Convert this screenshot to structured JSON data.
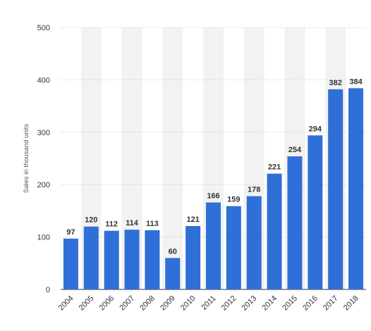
{
  "chart_data": {
    "type": "bar",
    "categories": [
      "2004",
      "2005",
      "2006",
      "2007",
      "2008",
      "2009",
      "2010",
      "2011",
      "2012",
      "2013",
      "2014",
      "2015",
      "2016",
      "2017",
      "2018"
    ],
    "values": [
      97,
      120,
      112,
      114,
      113,
      60,
      121,
      166,
      159,
      178,
      221,
      254,
      294,
      382,
      384
    ],
    "ylabel": "Sales in thousand units",
    "ylim": [
      0,
      500
    ],
    "yticks": [
      0,
      100,
      200,
      300,
      400,
      500
    ],
    "grid": true,
    "colors": {
      "bar": "#2f6fd8",
      "grid": "#c9c9c9",
      "band": "#f2f2f2"
    }
  }
}
